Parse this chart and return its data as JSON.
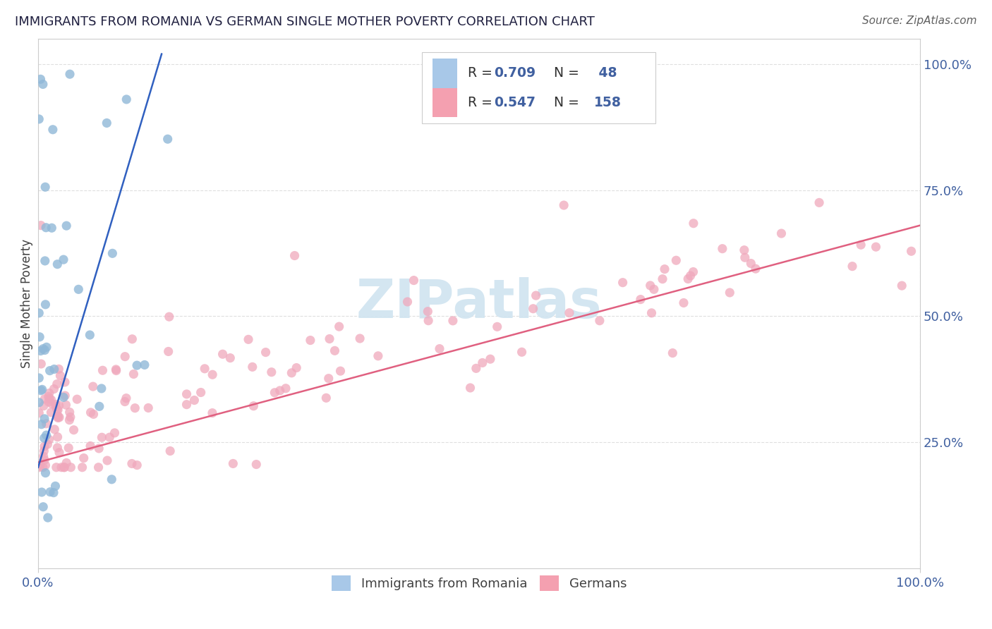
{
  "title": "IMMIGRANTS FROM ROMANIA VS GERMAN SINGLE MOTHER POVERTY CORRELATION CHART",
  "source": "Source: ZipAtlas.com",
  "ylabel": "Single Mother Poverty",
  "blue_color": "#a8c8e8",
  "pink_color": "#f4a0b0",
  "blue_line_color": "#3060c0",
  "pink_line_color": "#e06080",
  "watermark_color": "#d0e4f0",
  "blue_scatter_color": "#90b8d8",
  "pink_scatter_color": "#f0a8bc",
  "xlim": [
    0.0,
    1.0
  ],
  "ylim": [
    0.0,
    1.05
  ],
  "legend_r_color": "#4060a0",
  "legend_label_color": "#404040",
  "axis_label_color": "#4060a0",
  "title_color": "#202040",
  "source_color": "#606060",
  "grid_color": "#d8d8d8"
}
